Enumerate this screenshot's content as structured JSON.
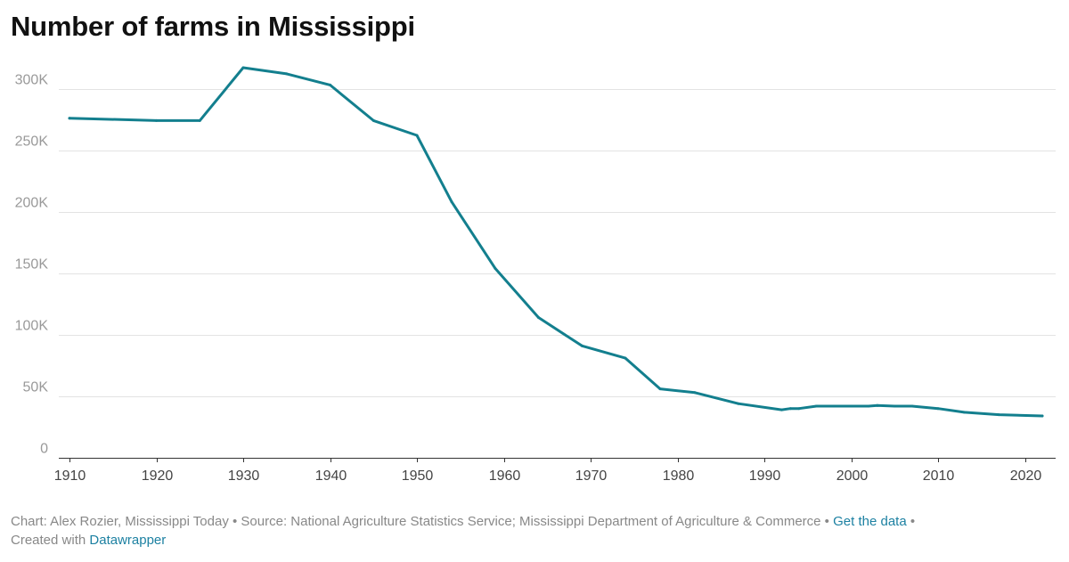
{
  "chart_data": {
    "type": "line",
    "title": "Number of farms in Mississippi",
    "xlabel": "",
    "ylabel": "",
    "xlim": [
      1910,
      2022
    ],
    "ylim": [
      0,
      330000
    ],
    "x_ticks": [
      1910,
      1920,
      1930,
      1940,
      1950,
      1960,
      1970,
      1980,
      1990,
      2000,
      2010,
      2020
    ],
    "y_ticks": [
      {
        "value": 0,
        "label": "0"
      },
      {
        "value": 50000,
        "label": "50K"
      },
      {
        "value": 100000,
        "label": "100K"
      },
      {
        "value": 150000,
        "label": "150K"
      },
      {
        "value": 200000,
        "label": "200K"
      },
      {
        "value": 250000,
        "label": "250K"
      },
      {
        "value": 300000,
        "label": "300K"
      }
    ],
    "grid": true,
    "series": [
      {
        "name": "",
        "color": "#137f8e",
        "x": [
          1910,
          1920,
          1925,
          1930,
          1935,
          1940,
          1945,
          1950,
          1954,
          1959,
          1964,
          1969,
          1974,
          1978,
          1982,
          1987,
          1992,
          1993,
          1994,
          1996,
          1998,
          2000,
          2002,
          2003,
          2005,
          2007,
          2010,
          2013,
          2017,
          2022
        ],
        "y": [
          276000,
          274000,
          274000,
          317000,
          312000,
          303000,
          274000,
          262000,
          208000,
          154000,
          114000,
          91000,
          81000,
          56000,
          53000,
          44000,
          39000,
          40000,
          40000,
          42000,
          42000,
          42000,
          42000,
          42500,
          42000,
          42000,
          40000,
          37000,
          35000,
          34000
        ]
      }
    ]
  },
  "footer": {
    "credit": "Chart: Alex Rozier, Mississippi Today",
    "sep1": " • ",
    "source": "Source: National Agriculture Statistics Service; Mississippi Department of Agriculture & Commerce",
    "sep2": " • ",
    "get_data_label": "Get the data",
    "sep3": " •",
    "created_with_label": "Created with",
    "datawrapper_label": "Datawrapper"
  }
}
